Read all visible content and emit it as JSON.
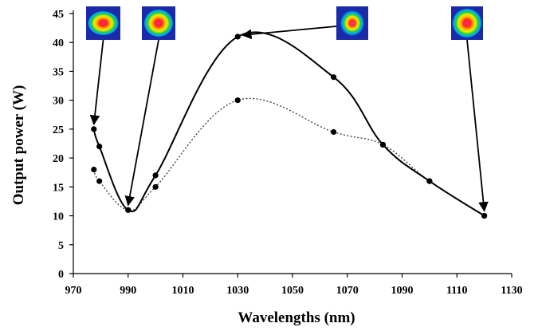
{
  "chart_data": {
    "type": "line",
    "title": "",
    "xlabel": "Wavelengths (nm)",
    "ylabel": "Output power (W)",
    "xlim": [
      970,
      1130
    ],
    "ylim": [
      0,
      45
    ],
    "xticks": [
      970,
      990,
      1010,
      1030,
      1050,
      1070,
      1090,
      1110,
      1130
    ],
    "yticks": [
      0,
      5,
      10,
      15,
      20,
      25,
      30,
      35,
      40,
      45
    ],
    "grid": false,
    "legend": "none",
    "series": [
      {
        "style": "solid",
        "color": "#000000",
        "x": [
          977.5,
          979.5,
          990,
          1000,
          1030,
          1065,
          1083,
          1100,
          1120
        ],
        "y": [
          25,
          22,
          11,
          17,
          41,
          34,
          22.3,
          16,
          10
        ]
      },
      {
        "style": "dotted",
        "color": "#444444",
        "x": [
          977.5,
          979.5,
          990,
          1000,
          1030,
          1065,
          1083,
          1100,
          1120
        ],
        "y": [
          18,
          16,
          11,
          15,
          30,
          24.5,
          22.3,
          16,
          10
        ]
      }
    ],
    "beam_profiles": [
      {
        "name": "beam-profile-1",
        "points_to": [
          977.5,
          25
        ]
      },
      {
        "name": "beam-profile-2",
        "points_to": [
          990,
          11
        ]
      },
      {
        "name": "beam-profile-3",
        "points_to": [
          1030,
          41
        ]
      },
      {
        "name": "beam-profile-4",
        "points_to": [
          1120,
          10
        ]
      }
    ]
  }
}
